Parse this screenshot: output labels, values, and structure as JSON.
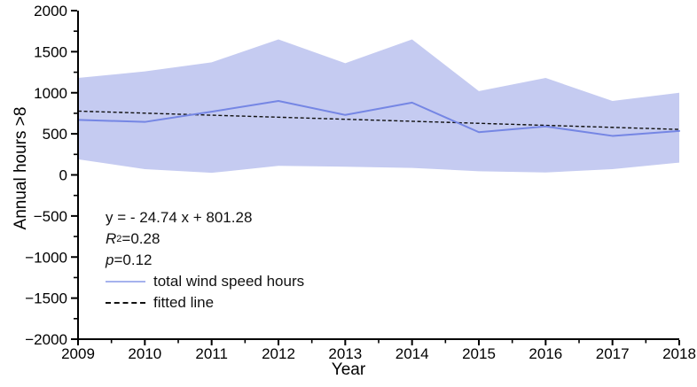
{
  "figure": {
    "background": "#ffffff",
    "axis_color": "#000000"
  },
  "chart_data": {
    "type": "line",
    "title": "",
    "xlabel": "Year",
    "ylabel": "Annual hours >8",
    "xlim": [
      2009,
      2018
    ],
    "ylim": [
      -2000,
      2000
    ],
    "grid": false,
    "x": [
      2009,
      2010,
      2011,
      2012,
      2013,
      2014,
      2015,
      2016,
      2017,
      2018
    ],
    "x_tick_labels": [
      "2009",
      "2010",
      "2011",
      "2012",
      "2013",
      "2014",
      "2015",
      "2016",
      "2017",
      "2018"
    ],
    "x_minor_step": 0.5,
    "y_ticks": [
      2000,
      1500,
      1000,
      500,
      0,
      -500,
      -1000,
      -1500,
      -2000
    ],
    "y_tick_labels": [
      "2000",
      "1500",
      "1000",
      "500",
      "0",
      "−500",
      "−1000",
      "−1500",
      "−2000"
    ],
    "y_minor_step": 250,
    "series": [
      {
        "name": "total wind speed hours",
        "style": "solid",
        "color": "#7586e4",
        "values": [
          670,
          645,
          770,
          900,
          730,
          880,
          520,
          590,
          475,
          535
        ]
      },
      {
        "name": "fitted line",
        "style": "dashed",
        "color": "#111111",
        "slope": -24.74,
        "intercept": 801.28,
        "x_index_range": [
          1,
          10
        ],
        "endpoint_values": [
          776.54,
          553.88
        ]
      }
    ],
    "band": {
      "name": "total wind speed hours range",
      "color": "#c5cbf1",
      "upper": [
        1180,
        1260,
        1370,
        1650,
        1360,
        1650,
        1020,
        1180,
        900,
        1000
      ],
      "lower": [
        190,
        70,
        25,
        110,
        100,
        85,
        45,
        30,
        70,
        150
      ]
    },
    "annotations": {
      "equation": "y = - 24.74 x + 801.28",
      "r2_base": "R",
      "r2_sup": "2",
      "r2_rest": "=0.28",
      "p_base": "p",
      "p_rest": "=0.12"
    },
    "legend": {
      "position": "inside-lower-left",
      "items": [
        {
          "label": "total wind speed hours",
          "swatch": "solid-blue-line"
        },
        {
          "label": "fitted line",
          "swatch": "dashed-black-line"
        }
      ]
    }
  }
}
